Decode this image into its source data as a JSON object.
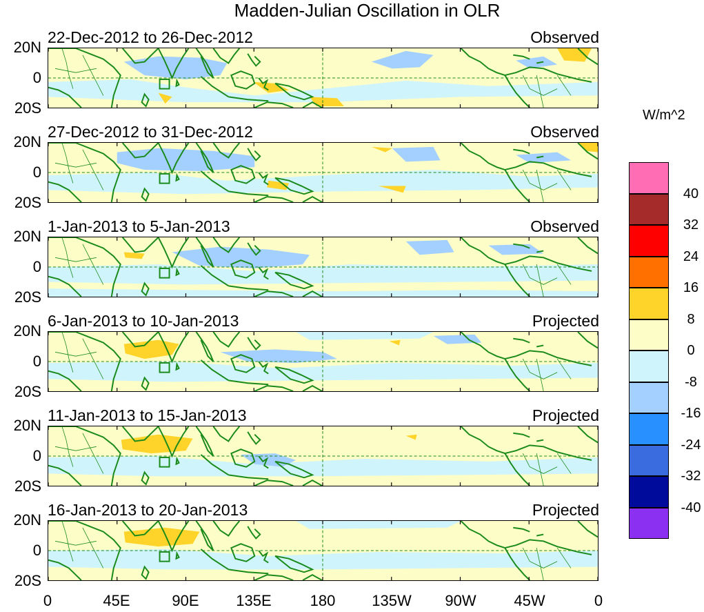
{
  "title": "Madden-Julian Oscillation in OLR",
  "units": "W/m^2",
  "y_axis_labels": [
    "20N",
    "0",
    "20S"
  ],
  "x_axis_labels": [
    "0",
    "45E",
    "90E",
    "135E",
    "180",
    "135W",
    "90W",
    "45W",
    "0"
  ],
  "colorbar": {
    "labels": [
      "40",
      "32",
      "24",
      "16",
      "8",
      "0",
      "-8",
      "-16",
      "-24",
      "-32",
      "-40"
    ],
    "colors": [
      "#ff6eb4",
      "#a52a2a",
      "#ff0000",
      "#ff7000",
      "#ffd42a",
      "#fdfdc8",
      "#cff4fc",
      "#a3d0ff",
      "#2891ff",
      "#3a6ce0",
      "#000a9b",
      "#8b30f0"
    ]
  },
  "panels": [
    {
      "dates": "22-Dec-2012 to 26-Dec-2012",
      "status": "Observed"
    },
    {
      "dates": "27-Dec-2012 to 31-Dec-2012",
      "status": "Observed"
    },
    {
      "dates": "1-Jan-2013 to 5-Jan-2013",
      "status": "Observed"
    },
    {
      "dates": "6-Jan-2013 to 10-Jan-2013",
      "status": "Projected"
    },
    {
      "dates": "11-Jan-2013 to 15-Jan-2013",
      "status": "Projected"
    },
    {
      "dates": "16-Jan-2013 to 20-Jan-2013",
      "status": "Projected"
    }
  ]
}
